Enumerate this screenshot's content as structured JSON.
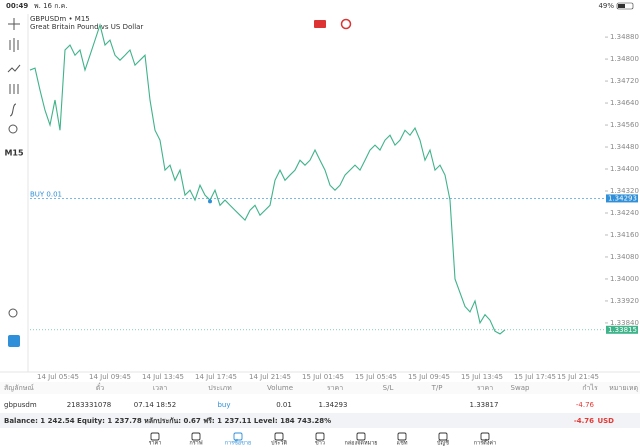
{
  "status_bar": {
    "time": "00:49",
    "date": "พ. 16 ก.ค.",
    "battery": "49%"
  },
  "chart_data": {
    "type": "line",
    "title": "GBPUSDm • M15",
    "subtitle": "Great Britain Pound vs US Dollar",
    "timeframe": "M15",
    "color": "#3fb38a",
    "values": [
      1.3476,
      1.34767,
      1.34687,
      1.34614,
      1.3456,
      1.34651,
      1.34541,
      1.34833,
      1.34851,
      1.34814,
      1.34833,
      1.3476,
      1.34814,
      1.34869,
      1.34924,
      1.34851,
      1.34869,
      1.34814,
      1.34796,
      1.34814,
      1.34833,
      1.34778,
      1.34796,
      1.34814,
      1.34651,
      1.34541,
      1.34505,
      1.34396,
      1.34414,
      1.34359,
      1.34396,
      1.34305,
      1.34323,
      1.34287,
      1.34341,
      1.34305,
      1.34287,
      1.34323,
      1.34268,
      1.34287,
      1.34268,
      1.3425,
      1.34232,
      1.34214,
      1.3425,
      1.34268,
      1.34232,
      1.3425,
      1.34268,
      1.34359,
      1.34396,
      1.34359,
      1.34378,
      1.34396,
      1.34432,
      1.34414,
      1.34432,
      1.34469,
      1.34432,
      1.34396,
      1.34341,
      1.34323,
      1.34341,
      1.34378,
      1.34396,
      1.34414,
      1.34396,
      1.34432,
      1.34469,
      1.34487,
      1.34469,
      1.34505,
      1.34523,
      1.34487,
      1.34505,
      1.34541,
      1.34523,
      1.34549,
      1.34505,
      1.34432,
      1.34469,
      1.34396,
      1.34414,
      1.34378,
      1.34287,
      1.34,
      1.3395,
      1.339,
      1.3388,
      1.3392,
      1.3384,
      1.3387,
      1.3385,
      1.3381,
      1.338,
      1.33815
    ],
    "ylim": [
      1.33676,
      1.34964
    ],
    "yticks": [
      {
        "value": 1.3488,
        "label": "1.34880"
      },
      {
        "value": 1.348,
        "label": "1.34800"
      },
      {
        "value": 1.3472,
        "label": "1.34720"
      },
      {
        "value": 1.3464,
        "label": "1.34640"
      },
      {
        "value": 1.3456,
        "label": "1.34560"
      },
      {
        "value": 1.3448,
        "label": "1.34480"
      },
      {
        "value": 1.344,
        "label": "1.34400"
      },
      {
        "value": 1.3432,
        "label": "1.34320"
      },
      {
        "value": 1.3424,
        "label": "1.34240"
      },
      {
        "value": 1.3416,
        "label": "1.34160"
      },
      {
        "value": 1.3408,
        "label": "1.34080"
      },
      {
        "value": 1.34,
        "label": "1.34000"
      },
      {
        "value": 1.3392,
        "label": "1.33920"
      },
      {
        "value": 1.3384,
        "label": "1.33840"
      }
    ],
    "xtick_labels": [
      "14 Jul 05:45",
      "14 Jul 09:45",
      "14 Jul 13:45",
      "14 Jul 17:45",
      "14 Jul 21:45",
      "15 Jul 01:45",
      "15 Jul 05:45",
      "15 Jul 09:45",
      "15 Jul 13:45",
      "15 Jul 17:45",
      "15 Jul 21:45"
    ],
    "order_line": {
      "label": "BUY 0.01",
      "value": 1.34293,
      "value_label": "1.34293",
      "color": "#2f8fd8"
    },
    "current_price": {
      "value": 1.33815,
      "value_label": "1.33815"
    }
  },
  "table": {
    "headers": [
      "สัญลักษณ์",
      "ตั๋ว",
      "เวลา",
      "ประเภท",
      "Volume",
      "ราคา",
      "S/L",
      "T/P",
      "ราคา",
      "Swap",
      "กำไร",
      "หมายเหตุ"
    ],
    "row": {
      "symbol": "gbpusdm",
      "ticket": "2183331078",
      "time": "07.14 18:52",
      "type": "buy",
      "volume": "0.01",
      "open_price": "1.34293",
      "price": "1.33817",
      "profit": "-4.76"
    }
  },
  "balance_bar": {
    "text": "Balance: 1 242.54 Equity: 1 237.78 หลักประกัน: 0.67 ฟรี: 1 237.11 Level: 184 743.28%",
    "profit": "-4.76",
    "currency": "USD"
  },
  "nav": [
    "ราคา",
    "กราฟ",
    "การซื้อขาย",
    "ประวัติ",
    "ข่าว",
    "กล่องจดหมาย",
    "แชท",
    "บัญชี",
    "การตั้งค่า"
  ]
}
